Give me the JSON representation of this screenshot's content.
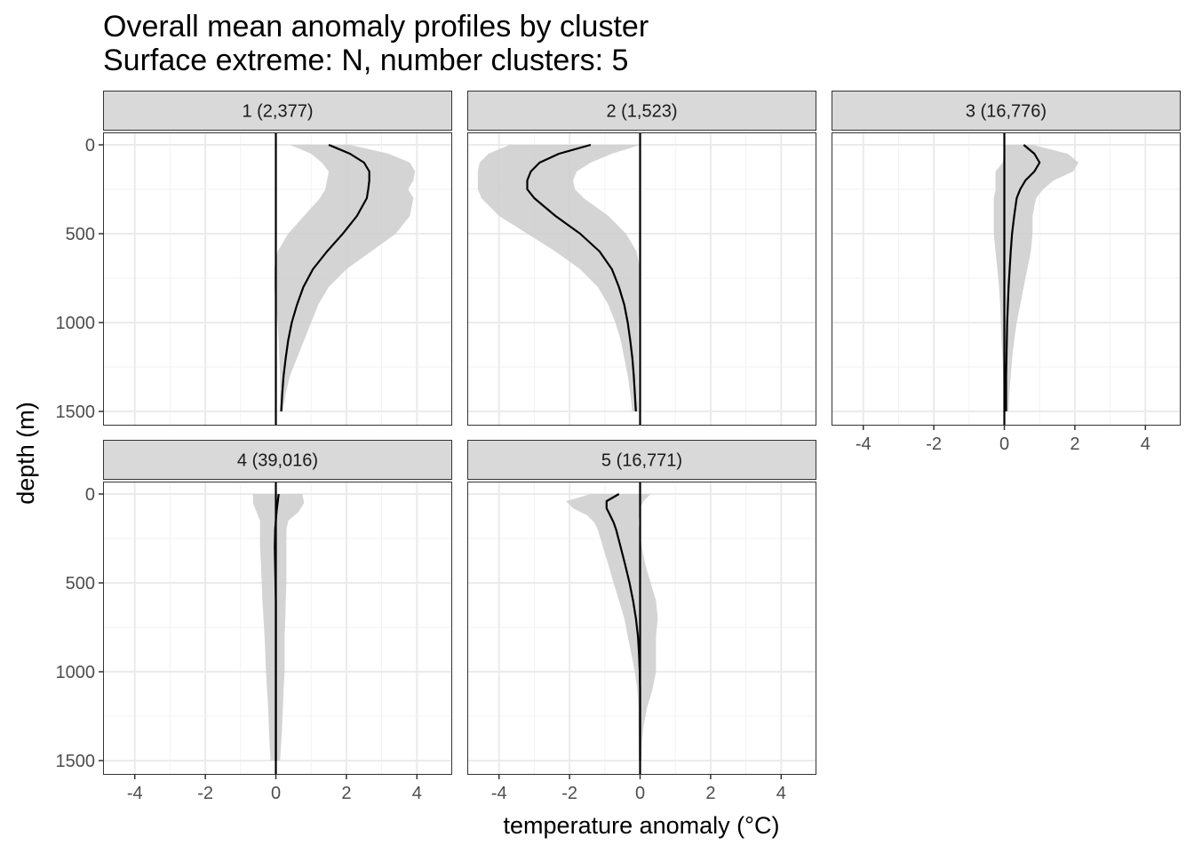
{
  "chart_data": {
    "type": "line",
    "title": "Overall mean anomaly profiles by cluster",
    "subtitle": "Surface extreme: N, number clusters: 5",
    "xlabel": "temperature anomaly (°C)",
    "ylabel": "depth (m)",
    "xlim": [
      -4.9,
      5.0
    ],
    "ylim": [
      1580,
      -70
    ],
    "x_ticks": [
      -4,
      -2,
      0,
      2,
      4
    ],
    "y_ticks": [
      0,
      500,
      1000,
      1500
    ],
    "grid": true,
    "reference_line_x": 0,
    "panels": [
      {
        "label": "1 (2,377)",
        "mean": {
          "depth": [
            0,
            50,
            100,
            150,
            200,
            250,
            300,
            400,
            500,
            600,
            700,
            800,
            900,
            1000,
            1100,
            1200,
            1300,
            1400,
            1500
          ],
          "anomaly": [
            1.5,
            2.1,
            2.5,
            2.65,
            2.65,
            2.62,
            2.58,
            2.3,
            1.9,
            1.45,
            1.05,
            0.78,
            0.6,
            0.45,
            0.35,
            0.28,
            0.22,
            0.18,
            0.15
          ]
        },
        "band": {
          "depth": [
            0,
            50,
            100,
            150,
            200,
            250,
            300,
            400,
            500,
            600,
            700,
            800,
            900,
            1000,
            1100,
            1200,
            1300,
            1400,
            1500
          ],
          "lower": [
            0.4,
            1.0,
            1.3,
            1.5,
            1.45,
            1.4,
            1.25,
            0.8,
            0.35,
            0.05,
            -0.05,
            -0.05,
            0.0,
            0.05,
            0.08,
            0.1,
            0.12,
            0.12,
            0.12
          ],
          "upper": [
            2.1,
            3.2,
            3.8,
            3.95,
            3.9,
            3.75,
            3.9,
            3.8,
            3.4,
            2.7,
            2.0,
            1.5,
            1.2,
            1.0,
            0.8,
            0.6,
            0.4,
            0.28,
            0.2
          ]
        }
      },
      {
        "label": "2 (1,523)",
        "mean": {
          "depth": [
            0,
            50,
            100,
            150,
            200,
            250,
            300,
            400,
            500,
            600,
            700,
            800,
            900,
            1000,
            1100,
            1200,
            1300,
            1400,
            1500
          ],
          "anomaly": [
            -1.4,
            -2.3,
            -2.85,
            -3.1,
            -3.2,
            -3.2,
            -3.0,
            -2.4,
            -1.7,
            -1.15,
            -0.8,
            -0.6,
            -0.45,
            -0.35,
            -0.28,
            -0.22,
            -0.18,
            -0.15,
            -0.12
          ]
        },
        "band": {
          "depth": [
            0,
            50,
            100,
            150,
            200,
            250,
            300,
            400,
            500,
            600,
            700,
            800,
            900,
            1000,
            1100,
            1200,
            1300,
            1400,
            1500
          ],
          "lower": [
            -3.7,
            -4.3,
            -4.55,
            -4.6,
            -4.6,
            -4.6,
            -4.5,
            -4.0,
            -3.2,
            -2.4,
            -1.7,
            -1.2,
            -0.9,
            -0.7,
            -0.55,
            -0.45,
            -0.35,
            -0.28,
            -0.22
          ],
          "upper": [
            0.0,
            -0.8,
            -1.4,
            -1.8,
            -1.9,
            -1.85,
            -1.6,
            -0.9,
            -0.4,
            -0.1,
            0.0,
            0.0,
            0.0,
            -0.05,
            -0.05,
            -0.05,
            -0.05,
            -0.05,
            -0.05
          ]
        }
      },
      {
        "label": "3 (16,776)",
        "mean": {
          "depth": [
            0,
            50,
            100,
            150,
            200,
            250,
            300,
            400,
            500,
            600,
            700,
            800,
            900,
            1000,
            1100,
            1200,
            1300,
            1400,
            1500
          ],
          "anomaly": [
            0.55,
            0.85,
            1.0,
            0.85,
            0.6,
            0.45,
            0.35,
            0.28,
            0.22,
            0.18,
            0.15,
            0.12,
            0.1,
            0.08,
            0.07,
            0.06,
            0.05,
            0.05,
            0.05
          ]
        },
        "band": {
          "depth": [
            0,
            50,
            100,
            150,
            200,
            250,
            300,
            400,
            500,
            600,
            700,
            800,
            900,
            1000,
            1100,
            1200,
            1300,
            1400,
            1500
          ],
          "lower": [
            0.0,
            0.0,
            -0.05,
            -0.25,
            -0.25,
            -0.25,
            -0.3,
            -0.3,
            -0.3,
            -0.25,
            -0.2,
            -0.15,
            -0.12,
            -0.1,
            -0.08,
            -0.05,
            -0.03,
            -0.02,
            -0.02
          ],
          "upper": [
            0.8,
            1.8,
            2.1,
            1.95,
            1.4,
            1.1,
            0.9,
            0.8,
            0.8,
            0.75,
            0.65,
            0.55,
            0.45,
            0.35,
            0.28,
            0.22,
            0.18,
            0.14,
            0.12
          ]
        }
      },
      {
        "label": "4 (39,016)",
        "mean": {
          "depth": [
            0,
            50,
            100,
            150,
            200,
            300,
            400,
            500,
            600,
            700,
            800,
            900,
            1000,
            1100,
            1200,
            1300,
            1400,
            1500
          ],
          "anomaly": [
            0.08,
            0.05,
            0.02,
            0.0,
            -0.02,
            -0.03,
            -0.02,
            -0.01,
            0.0,
            0.0,
            0.0,
            0.0,
            0.0,
            0.0,
            0.0,
            0.0,
            0.0,
            0.0
          ]
        },
        "band": {
          "depth": [
            0,
            50,
            100,
            150,
            200,
            300,
            400,
            500,
            600,
            700,
            800,
            900,
            1000,
            1100,
            1200,
            1300,
            1400,
            1500
          ],
          "lower": [
            -0.65,
            -0.65,
            -0.55,
            -0.45,
            -0.45,
            -0.45,
            -0.42,
            -0.4,
            -0.38,
            -0.35,
            -0.32,
            -0.3,
            -0.28,
            -0.25,
            -0.22,
            -0.2,
            -0.18,
            -0.15
          ],
          "upper": [
            0.75,
            0.8,
            0.65,
            0.35,
            0.3,
            0.3,
            0.3,
            0.3,
            0.28,
            0.27,
            0.25,
            0.25,
            0.25,
            0.22,
            0.2,
            0.18,
            0.15,
            0.12
          ]
        }
      },
      {
        "label": "5 (16,771)",
        "mean": {
          "depth": [
            0,
            40,
            80,
            120,
            160,
            200,
            300,
            400,
            500,
            600,
            700,
            800,
            900,
            1000,
            1100,
            1200,
            1300,
            1400,
            1500
          ],
          "anomaly": [
            -0.6,
            -0.95,
            -0.95,
            -0.85,
            -0.75,
            -0.68,
            -0.55,
            -0.42,
            -0.3,
            -0.2,
            -0.12,
            -0.06,
            -0.03,
            -0.01,
            0.0,
            0.0,
            0.0,
            0.0,
            0.0
          ]
        },
        "band": {
          "depth": [
            0,
            40,
            80,
            120,
            160,
            200,
            300,
            400,
            500,
            600,
            700,
            800,
            900,
            1000,
            1100,
            1200,
            1300,
            1400,
            1500
          ],
          "lower": [
            -1.4,
            -2.1,
            -1.9,
            -1.5,
            -1.3,
            -1.2,
            -1.05,
            -0.9,
            -0.75,
            -0.6,
            -0.45,
            -0.35,
            -0.25,
            -0.15,
            -0.08,
            -0.05,
            -0.05,
            -0.04,
            -0.03
          ],
          "upper": [
            0.3,
            0.1,
            0.0,
            -0.02,
            -0.05,
            -0.02,
            0.05,
            0.15,
            0.3,
            0.45,
            0.5,
            0.45,
            0.45,
            0.45,
            0.35,
            0.2,
            0.1,
            0.05,
            0.03
          ]
        }
      }
    ]
  }
}
